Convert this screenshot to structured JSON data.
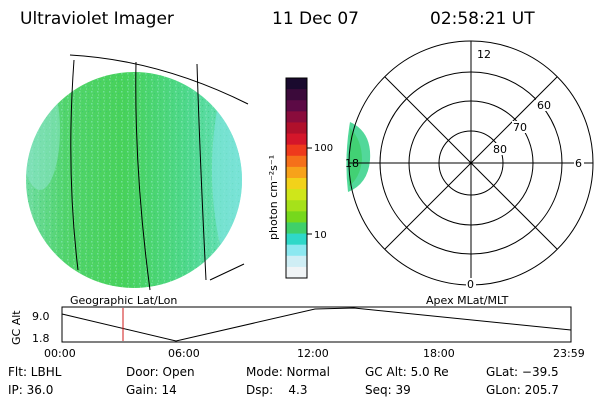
{
  "header": {
    "instrument": "Ultraviolet Imager",
    "date": "11 Dec 07",
    "time": "02:58:21 UT"
  },
  "geo_panel": {
    "label": "Geographic Lat/Lon"
  },
  "polar_panel": {
    "label": "Apex MLat/MLT",
    "mlt_labels": {
      "top": "12",
      "right": "6",
      "bottom": "0",
      "left": "18"
    },
    "lat_labels": [
      "60",
      "70",
      "80"
    ]
  },
  "colorbar": {
    "unit": "photon cm⁻²s⁻¹",
    "ticks": [
      "100",
      "10"
    ],
    "colors": [
      "#1a0a2e",
      "#3b0a3a",
      "#5c0a45",
      "#8a0c3c",
      "#b0102b",
      "#d4162a",
      "#ee3a1c",
      "#f5701a",
      "#f7a21a",
      "#f2d21a",
      "#cfe61a",
      "#a6e11a",
      "#76d81c",
      "#3fd06a",
      "#2fd8c8",
      "#8ce8f0",
      "#cfeef5",
      "#f0f4f6"
    ]
  },
  "altitude": {
    "ylabel": "GC Alt",
    "y_ticks": [
      "9.0",
      "1.8"
    ],
    "x_ticks": [
      "00:00",
      "06:00",
      "12:00",
      "18:00",
      "23:59"
    ]
  },
  "status": {
    "flt": "Flt: LBHL",
    "ip": "IP: 36.0",
    "door": "Door: Open",
    "gain": "Gain: 14",
    "mode": "Mode: Normal",
    "dsp": "Dsp:    4.3",
    "gcalt": "GC Alt: 5.0 Re",
    "seq": "Seq: 39",
    "glat": "GLat: −39.5",
    "glon": "GLon: 205.7"
  },
  "colors": {
    "earth_fill": "#3fcf8a",
    "earth_edge": "#7fe0e8",
    "marker": "#d01818",
    "line": "#000000"
  }
}
